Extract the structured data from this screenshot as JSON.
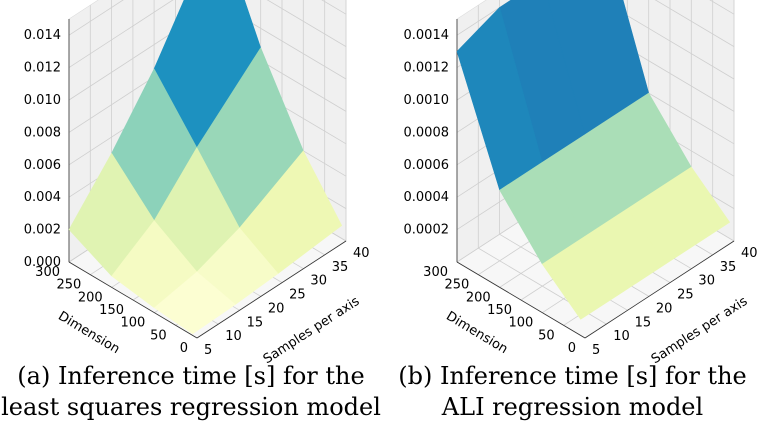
{
  "captions": [
    {
      "line1": "(a) Inference time [s] for the",
      "line2": "least squares regression model"
    },
    {
      "line1": "(b) Inference time [s] for the",
      "line2": "ALI regression model"
    }
  ],
  "chart_data": [
    {
      "type": "surface3d",
      "xlabel": "Dimension",
      "ylabel": "Samples per axis",
      "x_ticks": [
        "0",
        "50",
        "100",
        "150",
        "200",
        "250",
        "300"
      ],
      "y_ticks": [
        "5",
        "10",
        "15",
        "20",
        "25",
        "30",
        "35",
        "40"
      ],
      "z_ticks": [
        "0.000",
        "0.002",
        "0.004",
        "0.006",
        "0.008",
        "0.010",
        "0.012",
        "0.014"
      ],
      "xlim": [
        0,
        300
      ],
      "ylim": [
        5,
        40
      ],
      "zlim": [
        0,
        0.015
      ],
      "x": [
        10,
        100,
        200,
        300
      ],
      "y": [
        5,
        15,
        25,
        40
      ],
      "z": [
        [
          0.0001,
          0.0002,
          0.0004,
          0.0008
        ],
        [
          0.0003,
          0.0008,
          0.0018,
          0.004
        ],
        [
          0.0007,
          0.0024,
          0.0052,
          0.0088
        ],
        [
          0.002,
          0.005,
          0.0085,
          0.015
        ]
      ],
      "colormap": [
        "#ffffd9",
        "#edf8b1",
        "#c7e9b4",
        "#7fcdbb",
        "#41b6c4",
        "#1d91c0",
        "#225ea8",
        "#253494",
        "#081d58"
      ]
    },
    {
      "type": "surface3d",
      "xlabel": "Dimension",
      "ylabel": "Samples per axis",
      "x_ticks": [
        "0",
        "50",
        "100",
        "150",
        "200",
        "250",
        "300"
      ],
      "y_ticks": [
        "5",
        "10",
        "15",
        "20",
        "25",
        "30",
        "35",
        "40"
      ],
      "z_ticks": [
        "0.0002",
        "0.0004",
        "0.0006",
        "0.0008",
        "0.0010",
        "0.0012",
        "0.0014"
      ],
      "xlim": [
        0,
        300
      ],
      "ylim": [
        5,
        40
      ],
      "zlim": [
        0,
        0.0015
      ],
      "x": [
        10,
        100,
        200,
        300
      ],
      "y": [
        5,
        15,
        25,
        40
      ],
      "z": [
        [
          0.0001,
          0.0001,
          0.0001,
          0.0001
        ],
        [
          0.0003,
          0.0003,
          0.0003,
          0.0003
        ],
        [
          0.0006,
          0.0006,
          0.0006,
          0.0006
        ],
        [
          0.0013,
          0.0014,
          0.0014,
          0.0014
        ]
      ],
      "colormap": [
        "#ffffd9",
        "#edf8b1",
        "#c7e9b4",
        "#7fcdbb",
        "#41b6c4",
        "#1d91c0",
        "#225ea8",
        "#253494",
        "#081d58"
      ]
    }
  ]
}
